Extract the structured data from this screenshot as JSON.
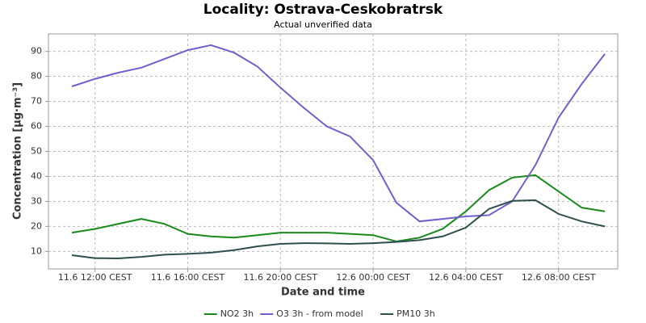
{
  "chart_data": {
    "type": "line",
    "title": "Locality: Ostrava-Ceskobratrsk",
    "subtitle": "Actual unverified data",
    "x_label": "Date and time",
    "y_label": "Concentration [µg·m⁻³]",
    "categories": [
      null,
      "11.6 12:00 CEST",
      null,
      null,
      null,
      "11.6 16:00 CEST",
      null,
      null,
      null,
      "11.6 20:00 CEST",
      null,
      null,
      null,
      "12.6 00:00 CEST",
      null,
      null,
      null,
      "12.6 04:00 CEST",
      null,
      null,
      null,
      "12.6 08:00 CEST",
      null,
      null
    ],
    "series": [
      {
        "name": "NO2 3h",
        "color": "#1a8a1a",
        "values": [
          17.5,
          19,
          21,
          23,
          21,
          17,
          16,
          15.5,
          16.5,
          17.5,
          17.5,
          17.5,
          17,
          16.5,
          14,
          15.5,
          19,
          26,
          34.5,
          39.5,
          40.5,
          34,
          27.5,
          26
        ]
      },
      {
        "name": "O3 3h - from model",
        "color": "#6f5fcf",
        "values": [
          76,
          79,
          81.5,
          83.5,
          87,
          90.5,
          92.5,
          89.5,
          84,
          75.5,
          67.5,
          60,
          56,
          46.5,
          29.5,
          22,
          23,
          24,
          24.5,
          30,
          44.5,
          63.5,
          77,
          89
        ]
      },
      {
        "name": "PM10 3h",
        "color": "#2f4f4f",
        "values": [
          8.5,
          7.3,
          7.2,
          7.8,
          8.7,
          9,
          9.5,
          10.5,
          12,
          13,
          13.3,
          13.2,
          13,
          13.3,
          13.8,
          14.5,
          16,
          19.5,
          27,
          30.2,
          30.5,
          25,
          22,
          20
        ]
      }
    ],
    "ylim": [
      3,
      97
    ],
    "yticks": [
      10,
      20,
      30,
      40,
      50,
      60,
      70,
      80,
      90
    ],
    "grid": true,
    "legend": "bottom"
  }
}
